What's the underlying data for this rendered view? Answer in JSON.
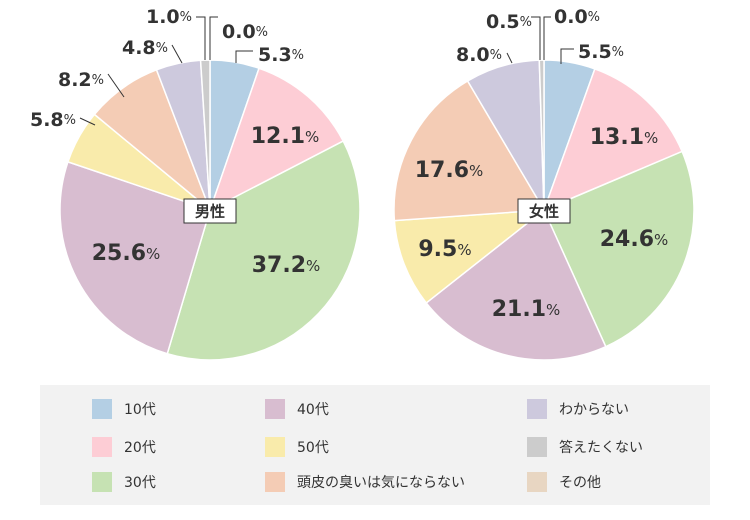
{
  "chart_data": {
    "type": "pie",
    "categories": [
      "10代",
      "20代",
      "30代",
      "40代",
      "50代",
      "頭皮の臭いは気にならない",
      "わからない",
      "答えたくない",
      "その他"
    ],
    "colors": [
      "#b4cfe4",
      "#fdcdd5",
      "#c6e2b3",
      "#d8bdd0",
      "#f9ebab",
      "#f4ccb5",
      "#cdc9dd",
      "#cccccc",
      "#e8d6c2"
    ],
    "charts": [
      {
        "title": "男性",
        "values": [
          5.3,
          12.1,
          37.2,
          25.6,
          5.8,
          8.2,
          4.8,
          1.0,
          0.0
        ],
        "value_labels": [
          "5.3",
          "12.1",
          "37.2",
          "25.6",
          "5.8",
          "8.2",
          "4.8",
          "1.0",
          "0.0"
        ]
      },
      {
        "title": "女性",
        "values": [
          5.5,
          13.1,
          24.6,
          21.1,
          9.5,
          17.6,
          8.0,
          0.5,
          0.0
        ],
        "value_labels": [
          "5.5",
          "13.1",
          "24.6",
          "21.1",
          "9.5",
          "17.6",
          "8.0",
          "0.5",
          "0.0"
        ]
      }
    ],
    "unit": "%",
    "legend_position": "bottom"
  },
  "legend": {
    "items": [
      "10代",
      "20代",
      "30代",
      "40代",
      "50代",
      "頭皮の臭いは気にならない",
      "わからない",
      "答えたくない",
      "その他"
    ]
  }
}
